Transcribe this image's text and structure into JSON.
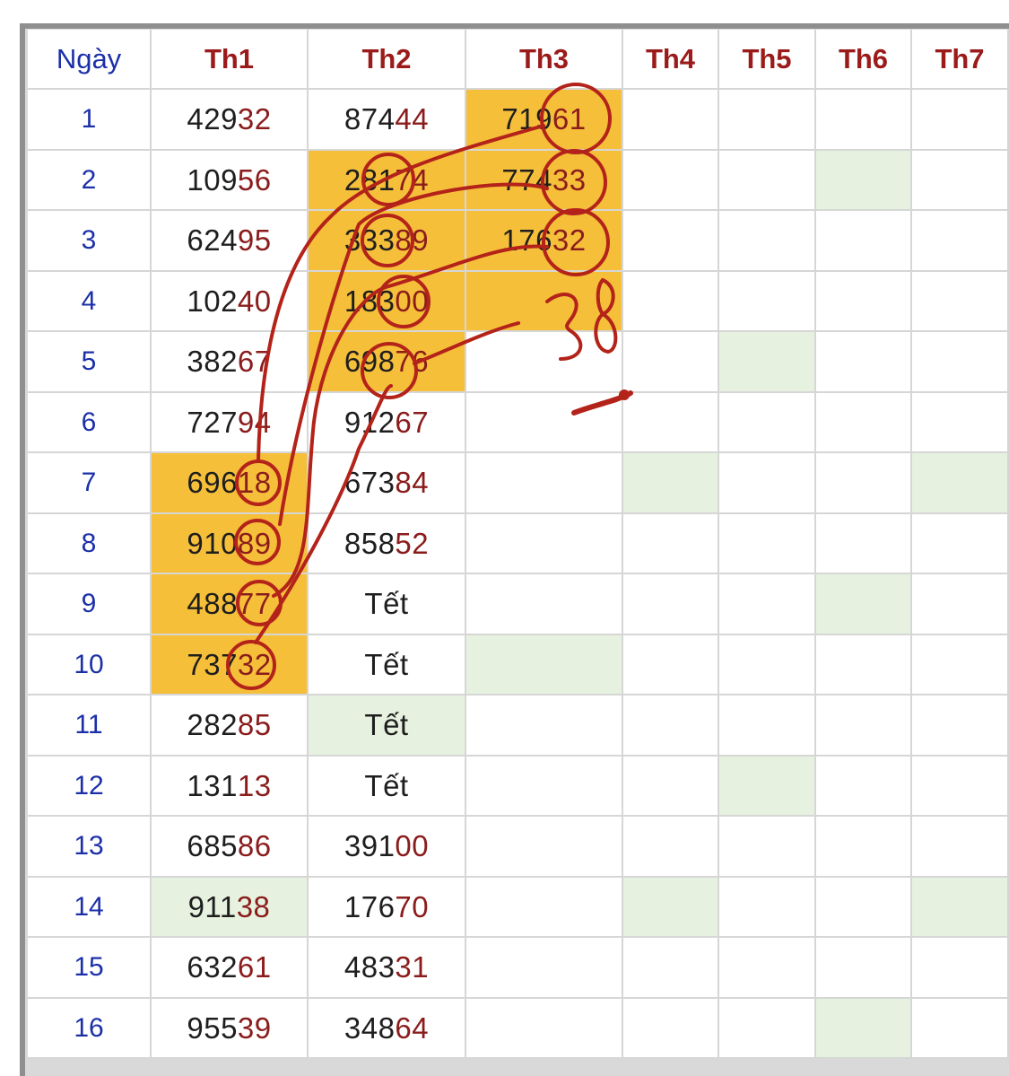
{
  "headers": [
    "Ngày",
    "Th1",
    "Th2",
    "Th3",
    "Th4",
    "Th5",
    "Th6",
    "Th7"
  ],
  "rows": [
    {
      "day": "1",
      "th1": "42932",
      "th2": "87444",
      "th3": "71961"
    },
    {
      "day": "2",
      "th1": "10956",
      "th2": "28174",
      "th3": "77433"
    },
    {
      "day": "3",
      "th1": "62495",
      "th2": "33389",
      "th3": "17632"
    },
    {
      "day": "4",
      "th1": "10240",
      "th2": "18300",
      "th3": ""
    },
    {
      "day": "5",
      "th1": "38267",
      "th2": "69876",
      "th3": ""
    },
    {
      "day": "6",
      "th1": "72794",
      "th2": "91267",
      "th3": ""
    },
    {
      "day": "7",
      "th1": "69618",
      "th2": "67384",
      "th3": ""
    },
    {
      "day": "8",
      "th1": "91089",
      "th2": "85852",
      "th3": ""
    },
    {
      "day": "9",
      "th1": "48877",
      "th2": "Tết",
      "th3": ""
    },
    {
      "day": "10",
      "th1": "73732",
      "th2": "Tết",
      "th3": ""
    },
    {
      "day": "11",
      "th1": "28285",
      "th2": "Tết",
      "th3": ""
    },
    {
      "day": "12",
      "th1": "13113",
      "th2": "Tết",
      "th3": ""
    },
    {
      "day": "13",
      "th1": "68586",
      "th2": "39100",
      "th3": ""
    },
    {
      "day": "14",
      "th1": "91138",
      "th2": "17670",
      "th3": ""
    },
    {
      "day": "15",
      "th1": "63261",
      "th2": "48331",
      "th3": ""
    },
    {
      "day": "16",
      "th1": "95539",
      "th2": "34864",
      "th3": ""
    }
  ],
  "handwritten_note": "38",
  "colors": {
    "highlight": "#f6bf3a",
    "weekend_tint": "#e6f2df",
    "ink": "#b3231a",
    "day_blue": "#1b2fa8",
    "header_red": "#9b1b1b"
  }
}
